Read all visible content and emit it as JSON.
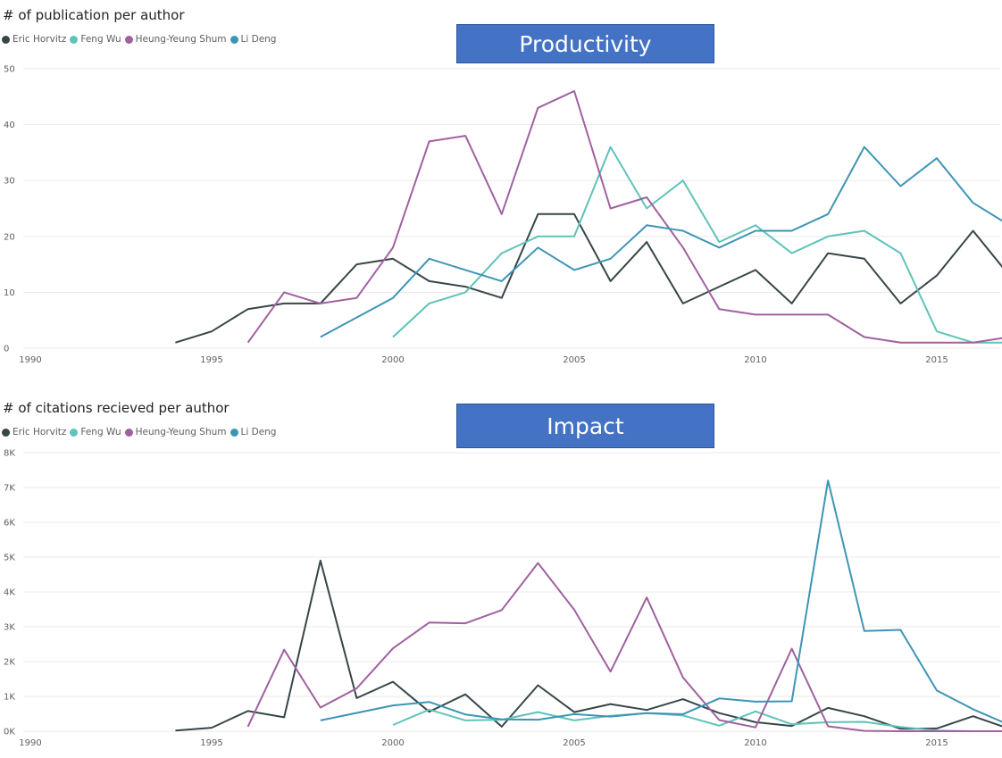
{
  "chart_data": [
    {
      "type": "line",
      "title": "# of publication per author",
      "banner": "Productivity",
      "xlim": [
        1990,
        2017
      ],
      "ylim": [
        0,
        50
      ],
      "x_ticks": [
        1990,
        1995,
        2000,
        2005,
        2010,
        2015
      ],
      "x_tick_labels": [
        "1990",
        "1995",
        "2000",
        "2005",
        "2010",
        "2015"
      ],
      "y_ticks": [
        0,
        10,
        20,
        30,
        40,
        50
      ],
      "y_tick_labels": [
        "0",
        "10",
        "20",
        "30",
        "40",
        "50"
      ],
      "grid": true,
      "legend_position": "top-left",
      "series": [
        {
          "name": "Eric Horvitz",
          "color": "#374649",
          "x": [
            1994,
            1995,
            1996,
            1997,
            1998,
            1999,
            2000,
            2001,
            2002,
            2003,
            2004,
            2005,
            2006,
            2007,
            2008,
            2009,
            2010,
            2011,
            2012,
            2013,
            2014,
            2015,
            2016,
            2017
          ],
          "values": [
            1,
            3,
            7,
            8,
            8,
            15,
            16,
            12,
            11,
            9,
            24,
            24,
            12,
            19,
            8,
            11,
            14,
            8,
            17,
            16,
            8,
            13,
            21,
            13
          ]
        },
        {
          "name": "Feng Wu",
          "color": "#5fc3b9",
          "x": [
            2000,
            2001,
            2002,
            2003,
            2004,
            2005,
            2006,
            2007,
            2008,
            2009,
            2010,
            2011,
            2012,
            2013,
            2014,
            2015,
            2016,
            2017
          ],
          "values": [
            2,
            8,
            10,
            17,
            20,
            20,
            36,
            25,
            30,
            19,
            22,
            17,
            20,
            21,
            17,
            3,
            1,
            1
          ]
        },
        {
          "name": "Heung-Yeung Shum",
          "color": "#a0619f",
          "x": [
            1996,
            1997,
            1998,
            1999,
            2000,
            2001,
            2002,
            2003,
            2004,
            2005,
            2006,
            2007,
            2008,
            2009,
            2010,
            2011,
            2012,
            2013,
            2014,
            2015,
            2016,
            2017
          ],
          "values": [
            1,
            10,
            8,
            9,
            18,
            37,
            38,
            24,
            43,
            46,
            25,
            27,
            18,
            7,
            6,
            6,
            6,
            2,
            1,
            1,
            1,
            2
          ]
        },
        {
          "name": "Li Deng",
          "color": "#3d95b5",
          "x": [
            1998,
            2000,
            2001,
            2002,
            2003,
            2004,
            2005,
            2006,
            2007,
            2008,
            2009,
            2010,
            2011,
            2012,
            2013,
            2014,
            2015,
            2016,
            2017
          ],
          "values": [
            2,
            9,
            16,
            14,
            12,
            18,
            14,
            16,
            22,
            21,
            18,
            21,
            21,
            24,
            36,
            29,
            34,
            26,
            22
          ]
        }
      ]
    },
    {
      "type": "line",
      "title": "# of citations recieved per author",
      "banner": "Impact",
      "xlim": [
        1990,
        2017
      ],
      "ylim": [
        0,
        8000
      ],
      "x_ticks": [
        1990,
        1995,
        2000,
        2005,
        2010,
        2015
      ],
      "x_tick_labels": [
        "1990",
        "1995",
        "2000",
        "2005",
        "2010",
        "2015"
      ],
      "y_ticks": [
        0,
        1000,
        2000,
        3000,
        4000,
        5000,
        6000,
        7000,
        8000
      ],
      "y_tick_labels": [
        "0K",
        "1K",
        "2K",
        "3K",
        "4K",
        "5K",
        "6K",
        "7K",
        "8K"
      ],
      "grid": true,
      "legend_position": "top-left",
      "series": [
        {
          "name": "Eric Horvitz",
          "color": "#374649",
          "x": [
            1994,
            1995,
            1996,
            1997,
            1998,
            1999,
            2000,
            2001,
            2002,
            2003,
            2004,
            2005,
            2006,
            2007,
            2008,
            2009,
            2010,
            2011,
            2012,
            2013,
            2014,
            2015,
            2016,
            2017
          ],
          "values": [
            20,
            100,
            580,
            400,
            4900,
            950,
            1420,
            560,
            1060,
            130,
            1320,
            550,
            780,
            610,
            920,
            520,
            260,
            150,
            670,
            430,
            70,
            80,
            430,
            70
          ]
        },
        {
          "name": "Feng Wu",
          "color": "#5fc3b9",
          "x": [
            2000,
            2001,
            2002,
            2003,
            2004,
            2005,
            2006,
            2007,
            2008,
            2009,
            2010,
            2011,
            2012,
            2013,
            2014,
            2015,
            2016,
            2017
          ],
          "values": [
            180,
            620,
            310,
            330,
            550,
            310,
            440,
            520,
            450,
            160,
            570,
            200,
            260,
            270,
            120,
            20,
            0,
            0
          ]
        },
        {
          "name": "Heung-Yeung Shum",
          "color": "#a0619f",
          "x": [
            1996,
            1997,
            1998,
            1999,
            2000,
            2001,
            2002,
            2003,
            2004,
            2005,
            2006,
            2007,
            2008,
            2009,
            2010,
            2011,
            2012,
            2013,
            2014,
            2015,
            2016,
            2017
          ],
          "values": [
            130,
            2340,
            680,
            1230,
            2380,
            3120,
            3100,
            3480,
            4830,
            3490,
            1710,
            3840,
            1540,
            320,
            110,
            2370,
            140,
            10,
            0,
            0,
            0,
            0
          ]
        },
        {
          "name": "Li Deng",
          "color": "#3d95b5",
          "x": [
            1998,
            2000,
            2001,
            2002,
            2003,
            2004,
            2005,
            2006,
            2007,
            2008,
            2009,
            2010,
            2011,
            2012,
            2013,
            2014,
            2015,
            2016,
            2017
          ],
          "values": [
            310,
            740,
            840,
            480,
            340,
            330,
            490,
            420,
            520,
            490,
            940,
            850,
            860,
            7200,
            2880,
            2910,
            1170,
            630,
            180
          ]
        }
      ]
    }
  ]
}
